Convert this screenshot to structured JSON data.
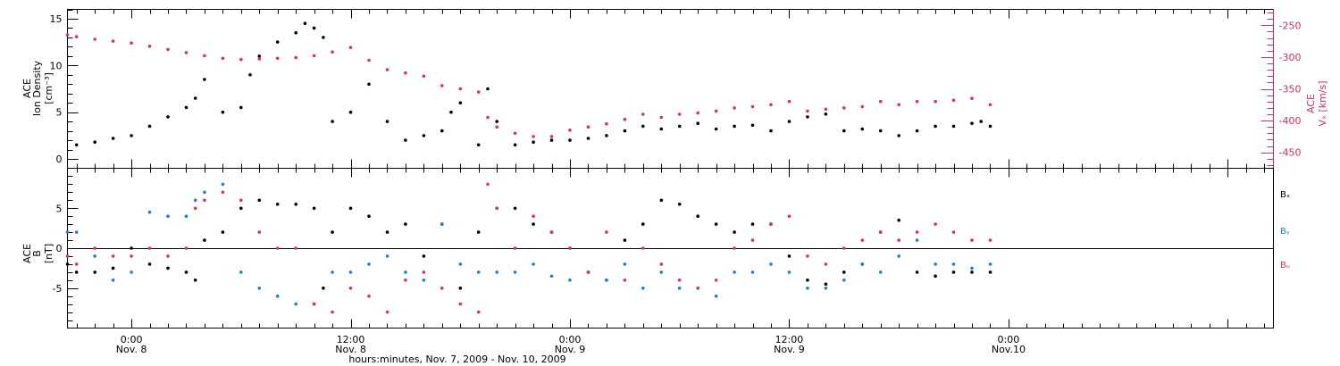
{
  "colors": {
    "black": "#000000",
    "pink": "#e0305e",
    "blue": "#1e7fd4",
    "pink_axis": "#d03060"
  },
  "time_axis": {
    "title": "hours:minutes, Nov. 7, 2009 - Nov. 10, 2009",
    "hour_range": [
      -3.5,
      62.5
    ],
    "ticks": [
      {
        "hour": 0,
        "time": "0:00",
        "day": "Nov. 8"
      },
      {
        "hour": 12,
        "time": "12:00",
        "day": "Nov. 8"
      },
      {
        "hour": 24,
        "time": "0:00",
        "day": "Nov. 9"
      },
      {
        "hour": 36,
        "time": "12:00",
        "day": "Nov. 9"
      },
      {
        "hour": 48,
        "time": "0:00",
        "day": "Nov.10"
      }
    ]
  },
  "chart_data": [
    {
      "type": "scatter",
      "panel": "top",
      "y_left_label": [
        "ACE",
        "Ion Density",
        "[cm⁻³]"
      ],
      "y_left_range": [
        -1,
        16
      ],
      "y_left_ticks": [
        "0",
        "5",
        "10",
        "15"
      ],
      "y_right_label": [
        "ACE",
        "Vₓ [km/s]"
      ],
      "y_right_range": [
        -475,
        -225
      ],
      "y_right_ticks": [
        "-250",
        "-300",
        "-350",
        "-400",
        "-450"
      ],
      "series": [
        {
          "color": "#000000",
          "axis": "left",
          "x": [
            -3,
            -2,
            -1,
            0,
            1,
            2,
            3,
            3.5,
            4,
            5,
            6,
            6.5,
            7,
            8,
            9,
            9.5,
            10,
            10.5,
            11,
            12,
            13,
            14,
            15,
            16,
            17,
            17.5,
            18,
            19,
            19.5,
            20,
            21,
            22,
            23,
            24,
            25,
            26,
            27,
            28,
            29,
            30,
            31,
            32,
            33,
            34,
            35,
            36,
            37,
            38,
            39,
            40,
            41,
            42,
            43,
            44,
            45,
            46,
            46.5,
            47
          ],
          "y": [
            1.5,
            1.8,
            2.2,
            2.5,
            3.5,
            4.5,
            5.5,
            6.5,
            8.5,
            5,
            5.5,
            9,
            11,
            12.5,
            13.5,
            14.5,
            14,
            13,
            4,
            5,
            8,
            4,
            2,
            2.5,
            3,
            5,
            6,
            1.5,
            7.5,
            4,
            1.5,
            1.8,
            2,
            2,
            2.2,
            2.5,
            3,
            3.5,
            3.2,
            3.5,
            3.8,
            3.2,
            3.5,
            3.6,
            3,
            4,
            4.5,
            4.8,
            3,
            3.2,
            3,
            2.5,
            3,
            3.5,
            3.5,
            3.8,
            4,
            3.5
          ]
        },
        {
          "color": "#e0305e",
          "axis": "right",
          "x": [
            -3.5,
            -3,
            -2,
            -1,
            0,
            1,
            2,
            3,
            4,
            5,
            6,
            7,
            8,
            9,
            10,
            11,
            12,
            13,
            14,
            15,
            16,
            17,
            18,
            19,
            19.5,
            20,
            21,
            22,
            23,
            24,
            25,
            26,
            27,
            28,
            29,
            30,
            31,
            32,
            33,
            34,
            35,
            36,
            37,
            38,
            39,
            40,
            41,
            42,
            43,
            44,
            45,
            46,
            47
          ],
          "y": [
            -265,
            -268,
            -272,
            -275,
            -278,
            -283,
            -288,
            -293,
            -298,
            -302,
            -304,
            -303,
            -302,
            -301,
            -298,
            -292,
            -285,
            -305,
            -320,
            -325,
            -330,
            -345,
            -350,
            -355,
            -395,
            -410,
            -420,
            -425,
            -425,
            -415,
            -410,
            -405,
            -398,
            -390,
            -395,
            -390,
            -388,
            -385,
            -380,
            -378,
            -375,
            -370,
            -385,
            -382,
            -380,
            -378,
            -370,
            -375,
            -370,
            -370,
            -368,
            -365,
            -375
          ]
        }
      ]
    },
    {
      "type": "scatter",
      "panel": "bottom",
      "y_label": [
        "ACE",
        "B",
        "[nT]"
      ],
      "y_range": [
        -10,
        10
      ],
      "y_ticks": [
        "-5",
        "0",
        "5"
      ],
      "legend_position": "right",
      "series": [
        {
          "name": "Bₓ",
          "color": "#000000",
          "x": [
            -3.5,
            -3,
            -2,
            -1,
            0,
            1,
            2,
            3,
            3.5,
            4,
            5,
            6,
            7,
            8,
            9,
            10,
            10.5,
            11,
            12,
            13,
            14,
            15,
            16,
            17,
            18,
            19,
            20,
            21,
            22,
            23,
            24,
            25,
            26,
            27,
            28,
            29,
            30,
            31,
            32,
            33,
            34,
            35,
            36,
            37,
            38,
            39,
            40,
            41,
            42,
            43,
            44,
            45,
            46,
            47
          ],
          "y": [
            -2,
            -3,
            -3,
            -2.5,
            0,
            -2,
            -2.5,
            -3,
            -4,
            1,
            2,
            5,
            6,
            5.5,
            5.5,
            5,
            -5,
            2,
            5,
            4,
            2,
            3,
            -1,
            3,
            -5,
            2,
            5,
            5,
            3,
            2,
            0,
            -3,
            -4,
            1,
            3,
            6,
            5.5,
            4,
            3,
            2,
            3,
            3,
            -1,
            -4,
            -4.5,
            -3,
            -2,
            2,
            3.5,
            -3,
            -3.5,
            -3,
            -3,
            -3
          ]
        },
        {
          "name": "Bᵧ",
          "color": "#1e7fd4",
          "x": [
            -3.5,
            -3,
            -2,
            -1,
            0,
            1,
            2,
            3,
            3.5,
            4,
            5,
            6,
            7,
            8,
            9,
            10,
            11,
            12,
            13,
            14,
            15,
            16,
            17,
            18,
            19,
            20,
            21,
            22,
            23,
            24,
            25,
            26,
            27,
            28,
            29,
            30,
            31,
            32,
            33,
            34,
            35,
            36,
            37,
            38,
            39,
            40,
            41,
            42,
            43,
            44,
            45,
            46,
            47
          ],
          "y": [
            2,
            2,
            -1,
            -4,
            -3,
            4.5,
            4,
            4,
            6,
            7,
            8,
            -3,
            -5,
            -6,
            -7,
            -7,
            -3,
            -3,
            -2,
            -1,
            -3,
            -4,
            3,
            -2,
            -3,
            -3,
            -3,
            -2,
            -3.5,
            -4,
            -3,
            -4,
            -2,
            -5,
            -3,
            -5,
            -5,
            -6,
            -3,
            -3,
            -2,
            -3,
            -5,
            -5,
            -4,
            -2,
            -3,
            -1,
            1,
            -2,
            -2,
            -2.5,
            -2
          ]
        },
        {
          "name": "Bᵤ",
          "color": "#e0305e",
          "x": [
            -3.5,
            -3,
            -2,
            -1,
            0,
            1,
            2,
            3,
            3.5,
            4,
            5,
            6,
            7,
            8,
            9,
            10,
            11,
            12,
            13,
            14,
            15,
            16,
            17,
            18,
            19,
            19.5,
            20,
            21,
            22,
            23,
            24,
            25,
            26,
            27,
            28,
            29,
            30,
            31,
            32,
            33,
            34,
            35,
            36,
            37,
            38,
            39,
            40,
            41,
            42,
            43,
            44,
            45,
            46,
            47
          ],
          "y": [
            -1,
            -2,
            0,
            -1,
            -1,
            0,
            -1,
            0,
            5,
            6,
            7,
            6,
            2,
            0,
            0,
            -7,
            -8,
            -5,
            -6,
            -8,
            -4,
            -3,
            -5,
            -7,
            -8,
            8,
            5,
            0,
            4,
            2,
            0,
            -3,
            2,
            -4,
            0,
            -2,
            -4,
            -5,
            -4,
            0,
            1,
            3,
            4,
            -1,
            -2,
            0,
            1,
            2,
            1,
            2,
            3,
            2,
            1,
            1
          ]
        }
      ]
    }
  ]
}
